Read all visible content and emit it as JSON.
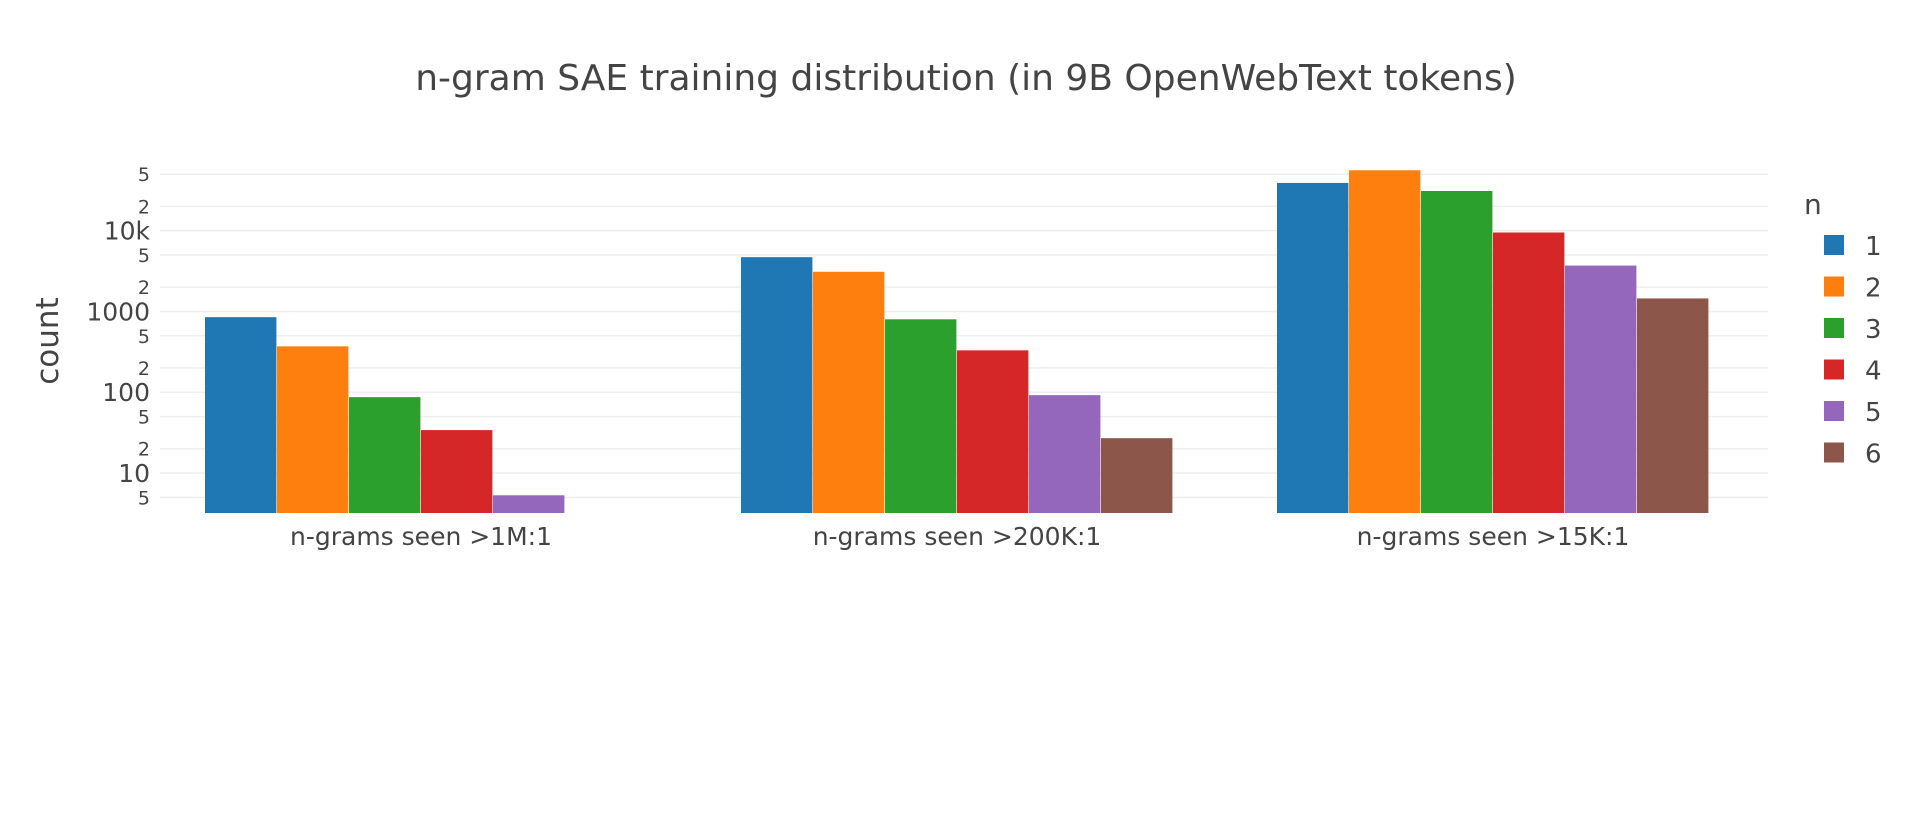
{
  "chart_data": {
    "type": "bar",
    "title": "n-gram SAE training distribution (in 9B OpenWebText tokens)",
    "xlabel": "",
    "ylabel": "count",
    "yscale": "log",
    "ylim": [
      3.2,
      75000
    ],
    "grid": true,
    "legend_title": "n",
    "legend_position": "right",
    "categories": [
      "n-grams seen >1M:1",
      "n-grams seen >200K:1",
      "n-grams seen >15K:1"
    ],
    "series": [
      {
        "name": "1",
        "color": "#1f77b4",
        "values": [
          850,
          4700,
          39000
        ]
      },
      {
        "name": "2",
        "color": "#ff7f0e",
        "values": [
          370,
          3100,
          56000
        ]
      },
      {
        "name": "3",
        "color": "#2ca02c",
        "values": [
          87,
          800,
          31000
        ]
      },
      {
        "name": "4",
        "color": "#d62728",
        "values": [
          34,
          330,
          9500
        ]
      },
      {
        "name": "5",
        "color": "#9467bd",
        "values": [
          5.3,
          92,
          3700
        ]
      },
      {
        "name": "6",
        "color": "#8c564b",
        "values": [
          null,
          27,
          1450
        ]
      }
    ],
    "y_major_ticks": [
      {
        "value": 10,
        "label": "10"
      },
      {
        "value": 100,
        "label": "100"
      },
      {
        "value": 1000,
        "label": "1000"
      },
      {
        "value": 10000,
        "label": "10k"
      }
    ],
    "y_minor_ticks": [
      {
        "value": 5,
        "label": "5"
      },
      {
        "value": 20,
        "label": "2"
      },
      {
        "value": 50,
        "label": "5"
      },
      {
        "value": 200,
        "label": "2"
      },
      {
        "value": 500,
        "label": "5"
      },
      {
        "value": 2000,
        "label": "2"
      },
      {
        "value": 5000,
        "label": "5"
      },
      {
        "value": 20000,
        "label": "2"
      },
      {
        "value": 50000,
        "label": "5"
      }
    ]
  }
}
